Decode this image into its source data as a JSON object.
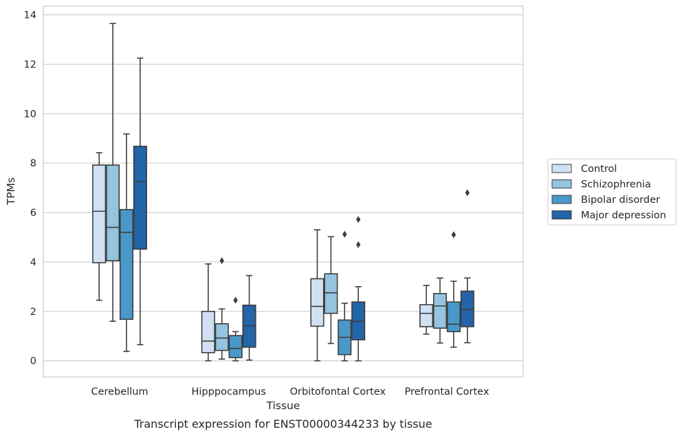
{
  "chart_data": {
    "type": "box",
    "categories": [
      "Cerebellum",
      "Hipppocampus",
      "Orbitofontal Cortex",
      "Prefrontal Cortex"
    ],
    "xlabel": "Tissue",
    "ylabel": "TPMs",
    "caption": "Transcript expression for ENST00000344233 by tissue",
    "ylim": [
      -0.65,
      14.35
    ],
    "yticks": [
      "0",
      "2",
      "4",
      "6",
      "8",
      "10",
      "12",
      "14"
    ],
    "grid": "horizontal",
    "legend": {
      "placement": "right",
      "entries": [
        "Control",
        "Schizophrenia",
        "Bipolar disorder",
        "Major depression"
      ]
    },
    "series": [
      {
        "name": "Control",
        "color": "#d0e1f2",
        "boxes": [
          {
            "whislo": 2.45,
            "q1": 3.97,
            "median": 6.05,
            "q3": 7.92,
            "whishi": 8.42,
            "fliers": []
          },
          {
            "whislo": 0.0,
            "q1": 0.33,
            "median": 0.8,
            "q3": 2.0,
            "whishi": 3.92,
            "fliers": []
          },
          {
            "whislo": 0.0,
            "q1": 1.4,
            "median": 2.2,
            "q3": 3.32,
            "whishi": 5.3,
            "fliers": []
          },
          {
            "whislo": 1.08,
            "q1": 1.38,
            "median": 1.92,
            "q3": 2.27,
            "whishi": 3.05,
            "fliers": []
          }
        ]
      },
      {
        "name": "Schizophrenia",
        "color": "#94c4df",
        "boxes": [
          {
            "whislo": 1.6,
            "q1": 4.05,
            "median": 5.4,
            "q3": 7.92,
            "whishi": 13.65,
            "fliers": []
          },
          {
            "whislo": 0.07,
            "q1": 0.42,
            "median": 0.92,
            "q3": 1.5,
            "whishi": 2.1,
            "fliers": [
              4.05
            ]
          },
          {
            "whislo": 0.7,
            "q1": 1.92,
            "median": 2.75,
            "q3": 3.52,
            "whishi": 5.02,
            "fliers": []
          },
          {
            "whislo": 0.72,
            "q1": 1.32,
            "median": 2.22,
            "q3": 2.72,
            "whishi": 3.35,
            "fliers": []
          }
        ]
      },
      {
        "name": "Bipolar disorder",
        "color": "#4a98c9",
        "boxes": [
          {
            "whislo": 0.38,
            "q1": 1.68,
            "median": 5.2,
            "q3": 6.12,
            "whishi": 9.18,
            "fliers": []
          },
          {
            "whislo": 0.0,
            "q1": 0.13,
            "median": 0.5,
            "q3": 1.02,
            "whishi": 1.18,
            "fliers": [
              2.45
            ]
          },
          {
            "whislo": 0.0,
            "q1": 0.25,
            "median": 0.95,
            "q3": 1.65,
            "whishi": 2.33,
            "fliers": [
              5.12
            ]
          },
          {
            "whislo": 0.55,
            "q1": 1.18,
            "median": 1.48,
            "q3": 2.38,
            "whishi": 3.22,
            "fliers": [
              5.1
            ]
          }
        ]
      },
      {
        "name": "Major depression",
        "color": "#2464a8",
        "boxes": [
          {
            "whislo": 0.65,
            "q1": 4.52,
            "median": 7.25,
            "q3": 8.68,
            "whishi": 12.25,
            "fliers": []
          },
          {
            "whislo": 0.03,
            "q1": 0.55,
            "median": 1.42,
            "q3": 2.25,
            "whishi": 3.45,
            "fliers": []
          },
          {
            "whislo": 0.0,
            "q1": 0.85,
            "median": 1.6,
            "q3": 2.38,
            "whishi": 3.0,
            "fliers": [
              4.7,
              5.72
            ]
          },
          {
            "whislo": 0.73,
            "q1": 1.38,
            "median": 2.08,
            "q3": 2.82,
            "whishi": 3.35,
            "fliers": [
              6.8
            ]
          }
        ]
      }
    ]
  }
}
